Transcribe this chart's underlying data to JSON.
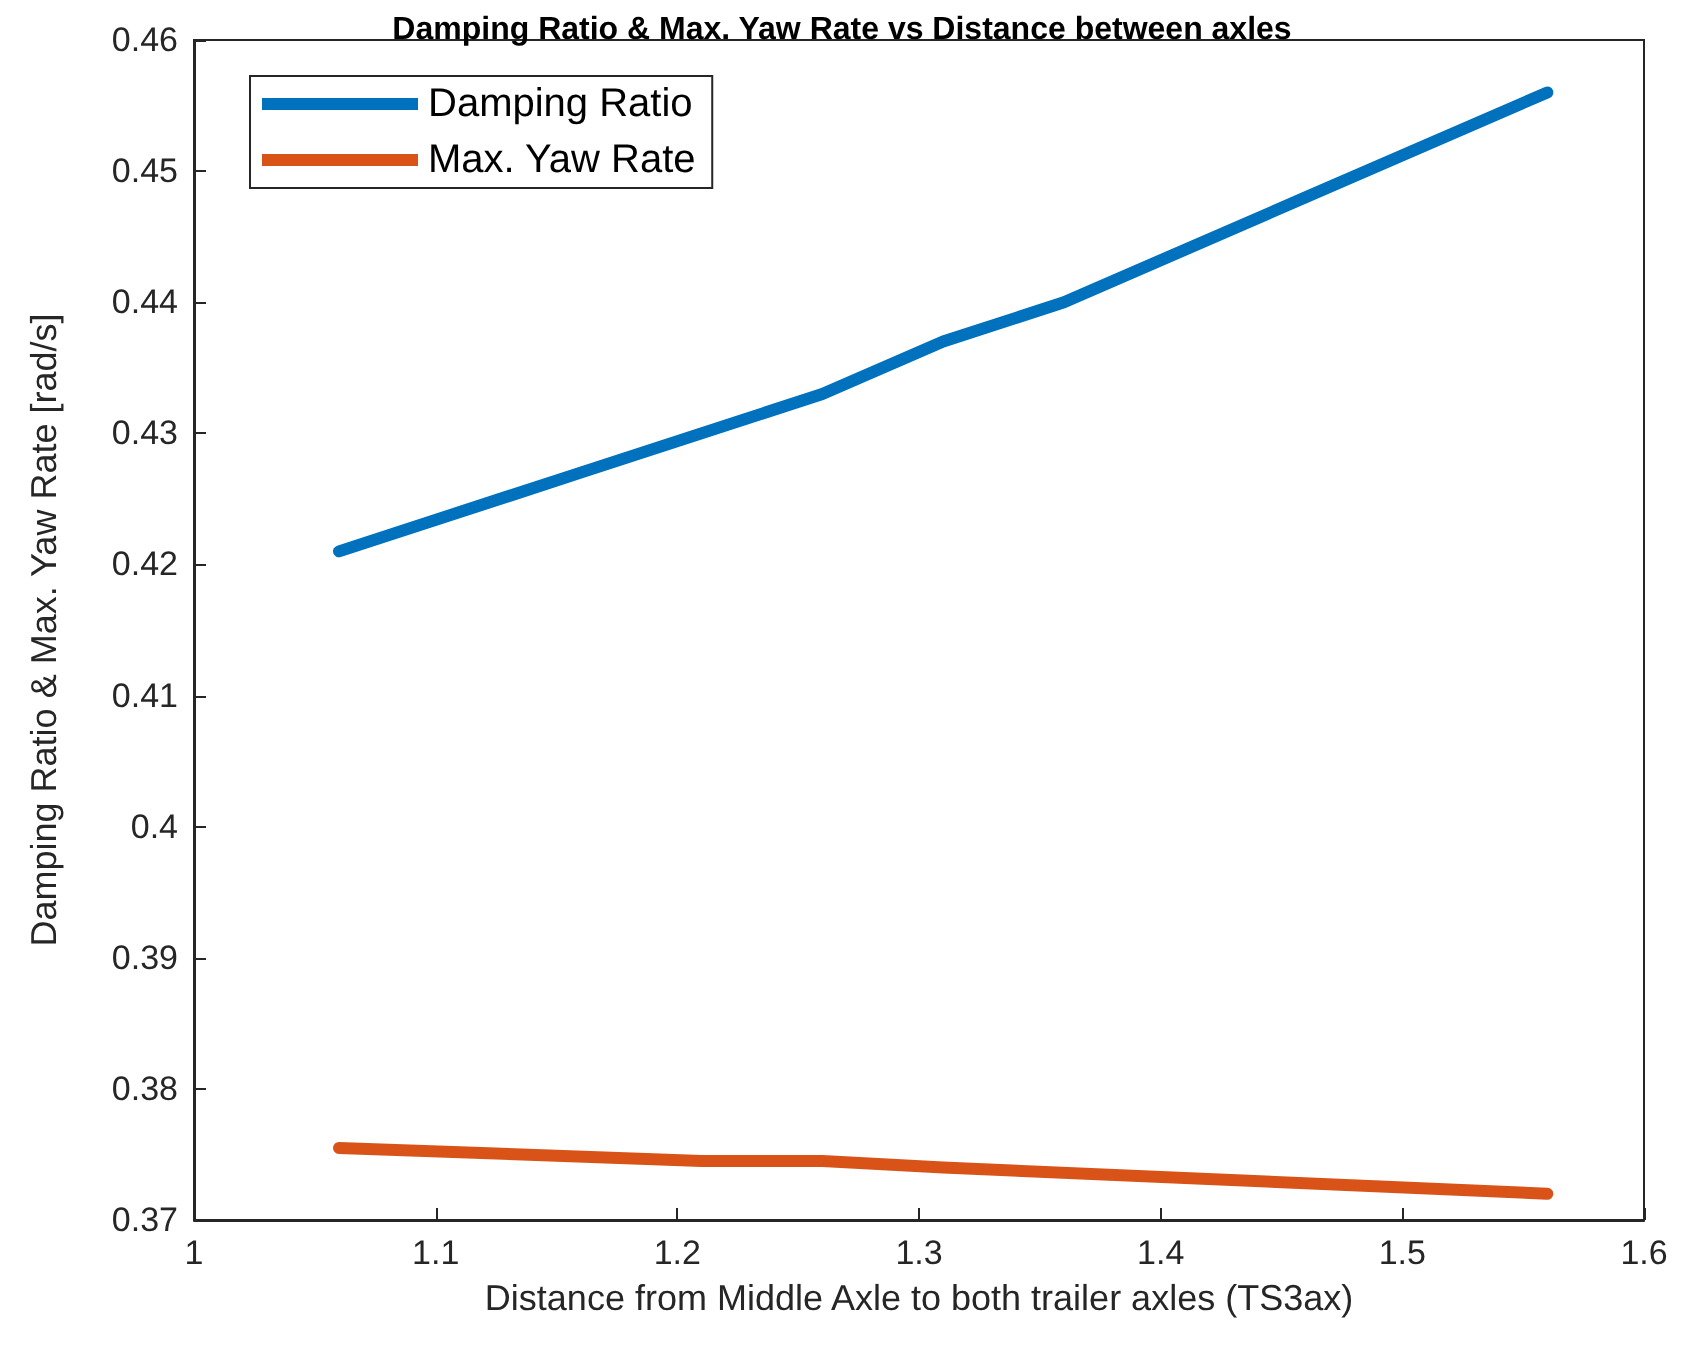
{
  "chart_data": {
    "type": "line",
    "title": "Damping Ratio & Max. Yaw Rate vs Distance between axles",
    "xlabel": "Distance from Middle Axle to both trailer axles (TS3ax)",
    "ylabel": "Damping Ratio & Max. Yaw Rate [rad/s]",
    "series": [
      {
        "name": "Damping Ratio",
        "color": "#0072bd",
        "x": [
          1.06,
          1.16,
          1.26,
          1.31,
          1.36,
          1.46,
          1.56
        ],
        "values": [
          0.421,
          0.427,
          0.433,
          0.437,
          0.44,
          0.448,
          0.456
        ]
      },
      {
        "name": "Max. Yaw Rate",
        "color": "#d95319",
        "x": [
          1.06,
          1.21,
          1.26,
          1.31,
          1.56
        ],
        "values": [
          0.3755,
          0.3745,
          0.3745,
          0.374,
          0.372
        ]
      }
    ],
    "xlim": [
      1,
      1.6
    ],
    "xticks": [
      1,
      1.1,
      1.2,
      1.3,
      1.4,
      1.5,
      1.6
    ],
    "ylim": [
      0.37,
      0.46
    ],
    "yticks": [
      0.37,
      0.38,
      0.39,
      0.4,
      0.41,
      0.42,
      0.43,
      0.44,
      0.45,
      0.46
    ],
    "grid": false,
    "legend": "top left",
    "marker": "none",
    "line_style": "solid"
  }
}
